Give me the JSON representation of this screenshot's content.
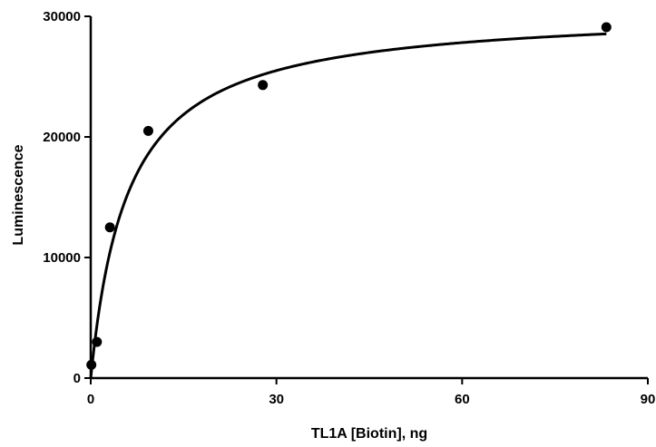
{
  "chart_data": {
    "type": "scatter",
    "title": "",
    "xlabel": "TL1A [Biotin], ng",
    "ylabel": "Luminescence",
    "xlim": [
      0,
      90
    ],
    "ylim": [
      0,
      30000
    ],
    "x_ticks": [
      0,
      30,
      60,
      90
    ],
    "y_ticks": [
      0,
      10000,
      20000,
      30000
    ],
    "x_tick_labels": [
      "0",
      "30",
      "60",
      "90"
    ],
    "y_tick_labels": [
      "0",
      "10000",
      "20000",
      "30000"
    ],
    "grid": false,
    "legend": "none",
    "series": [
      {
        "marker": "circle",
        "color": "#000000",
        "points": [
          {
            "x": 0.1,
            "y": 1100
          },
          {
            "x": 1.0,
            "y": 3000
          },
          {
            "x": 3.1,
            "y": 12500
          },
          {
            "x": 9.3,
            "y": 20500
          },
          {
            "x": 27.8,
            "y": 24300
          },
          {
            "x": 83.3,
            "y": 29100
          }
        ]
      }
    ],
    "fit": {
      "model": "one-site specific binding",
      "bmax": 30600,
      "kd": 6.0,
      "color": "#000000"
    }
  }
}
